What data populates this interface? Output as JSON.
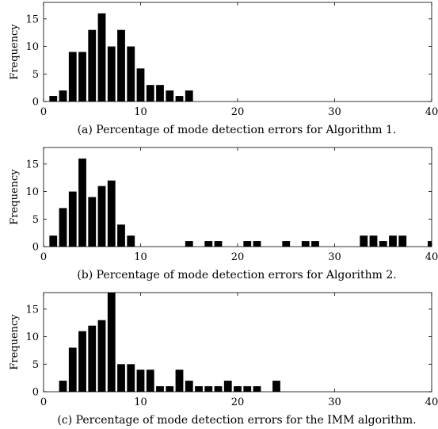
{
  "chart_data": [
    {
      "type": "bar",
      "caption": "(a) Percentage of mode detection errors for Algorithm 1.",
      "xlabel": "",
      "ylabel": "Frequency",
      "xlim": [
        0,
        40
      ],
      "ylim": [
        0,
        18
      ],
      "xticks": [
        0,
        10,
        20,
        30,
        40
      ],
      "yticks": [
        0,
        5,
        10,
        15
      ],
      "x": [
        1,
        2,
        3,
        4,
        5,
        6,
        7,
        8,
        9,
        10,
        11,
        12,
        13,
        14,
        15
      ],
      "values": [
        1,
        2,
        9,
        9,
        13,
        16,
        10,
        13,
        10,
        6,
        3,
        3,
        2,
        1,
        2
      ]
    },
    {
      "type": "bar",
      "caption": "(b) Percentage of mode detection errors for Algorithm 2.",
      "xlabel": "",
      "ylabel": "Frequency",
      "xlim": [
        0,
        40
      ],
      "ylim": [
        0,
        18
      ],
      "xticks": [
        0,
        10,
        20,
        30,
        40
      ],
      "yticks": [
        0,
        5,
        10,
        15
      ],
      "x": [
        1,
        2,
        3,
        4,
        5,
        6,
        7,
        8,
        9,
        15,
        17,
        18,
        21,
        22,
        25,
        27,
        28,
        33,
        34,
        35,
        36,
        37,
        40
      ],
      "values": [
        2,
        7,
        10,
        16,
        9,
        11,
        12,
        4,
        2,
        1,
        1,
        1,
        1,
        1,
        1,
        1,
        1,
        2,
        2,
        1,
        2,
        2,
        1
      ]
    },
    {
      "type": "bar",
      "caption": "(c) Percentage of mode detection errors for the IMM algorithm.",
      "xlabel": "",
      "ylabel": "Frequency",
      "xlim": [
        0,
        40
      ],
      "ylim": [
        0,
        18
      ],
      "xticks": [
        0,
        10,
        20,
        30,
        40
      ],
      "yticks": [
        0,
        5,
        10,
        15
      ],
      "x": [
        2,
        3,
        4,
        5,
        6,
        7,
        8,
        9,
        10,
        11,
        12,
        13,
        14,
        15,
        16,
        17,
        18,
        19,
        20,
        21,
        22,
        24
      ],
      "values": [
        2,
        8,
        11,
        12,
        13,
        18,
        5,
        5,
        4,
        4,
        1,
        1,
        4,
        2,
        1,
        1,
        1,
        2,
        1,
        1,
        1,
        2
      ]
    }
  ]
}
